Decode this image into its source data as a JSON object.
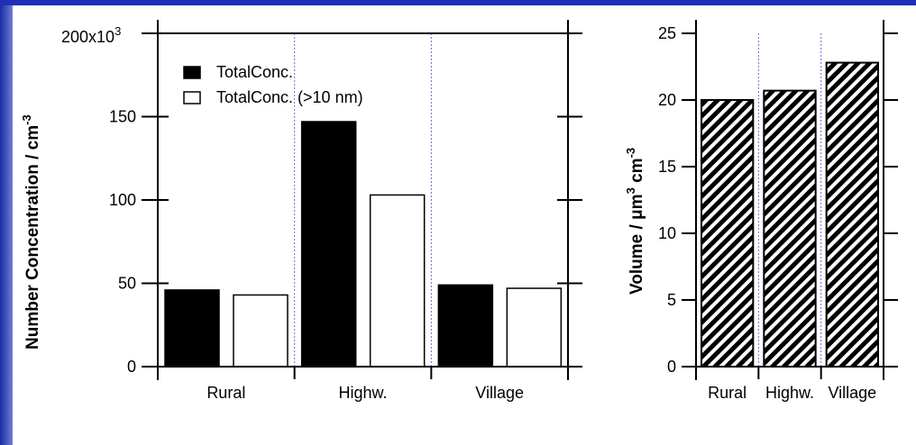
{
  "chart_data": [
    {
      "type": "bar",
      "categories": [
        "Rural",
        "Highw.",
        "Village"
      ],
      "series": [
        {
          "name": "TotalConc.",
          "values": [
            46,
            147,
            49
          ],
          "fill": "solid-black"
        },
        {
          "name": "TotalConc. (>10 nm)",
          "values": [
            43,
            103,
            47
          ],
          "fill": "white"
        }
      ],
      "ylabel_main": "Number Concentration / cm",
      "ylabel_sup": "-3",
      "ylim": [
        0,
        200
      ],
      "yticks": [
        0,
        50,
        100,
        150
      ],
      "top_tick_label": "200x10",
      "top_tick_sup": "3",
      "legend_position": "top-left",
      "grid": false
    },
    {
      "type": "bar",
      "categories": [
        "Rural",
        "Highw.",
        "Village"
      ],
      "series": [
        {
          "values": [
            20,
            20.7,
            22.8
          ],
          "fill": "diagonal-hatch"
        }
      ],
      "ylabel_parts": [
        "Volume / ",
        "μm",
        "3",
        " cm",
        "-3"
      ],
      "ylim": [
        0,
        25
      ],
      "yticks": [
        0,
        5,
        10,
        15,
        20,
        25
      ],
      "grid": false
    }
  ],
  "colors": {
    "background_border": "#1f2fb8",
    "bar_dark": "#000000",
    "bar_light": "#ffffff",
    "separator": "#6a6ad8"
  }
}
